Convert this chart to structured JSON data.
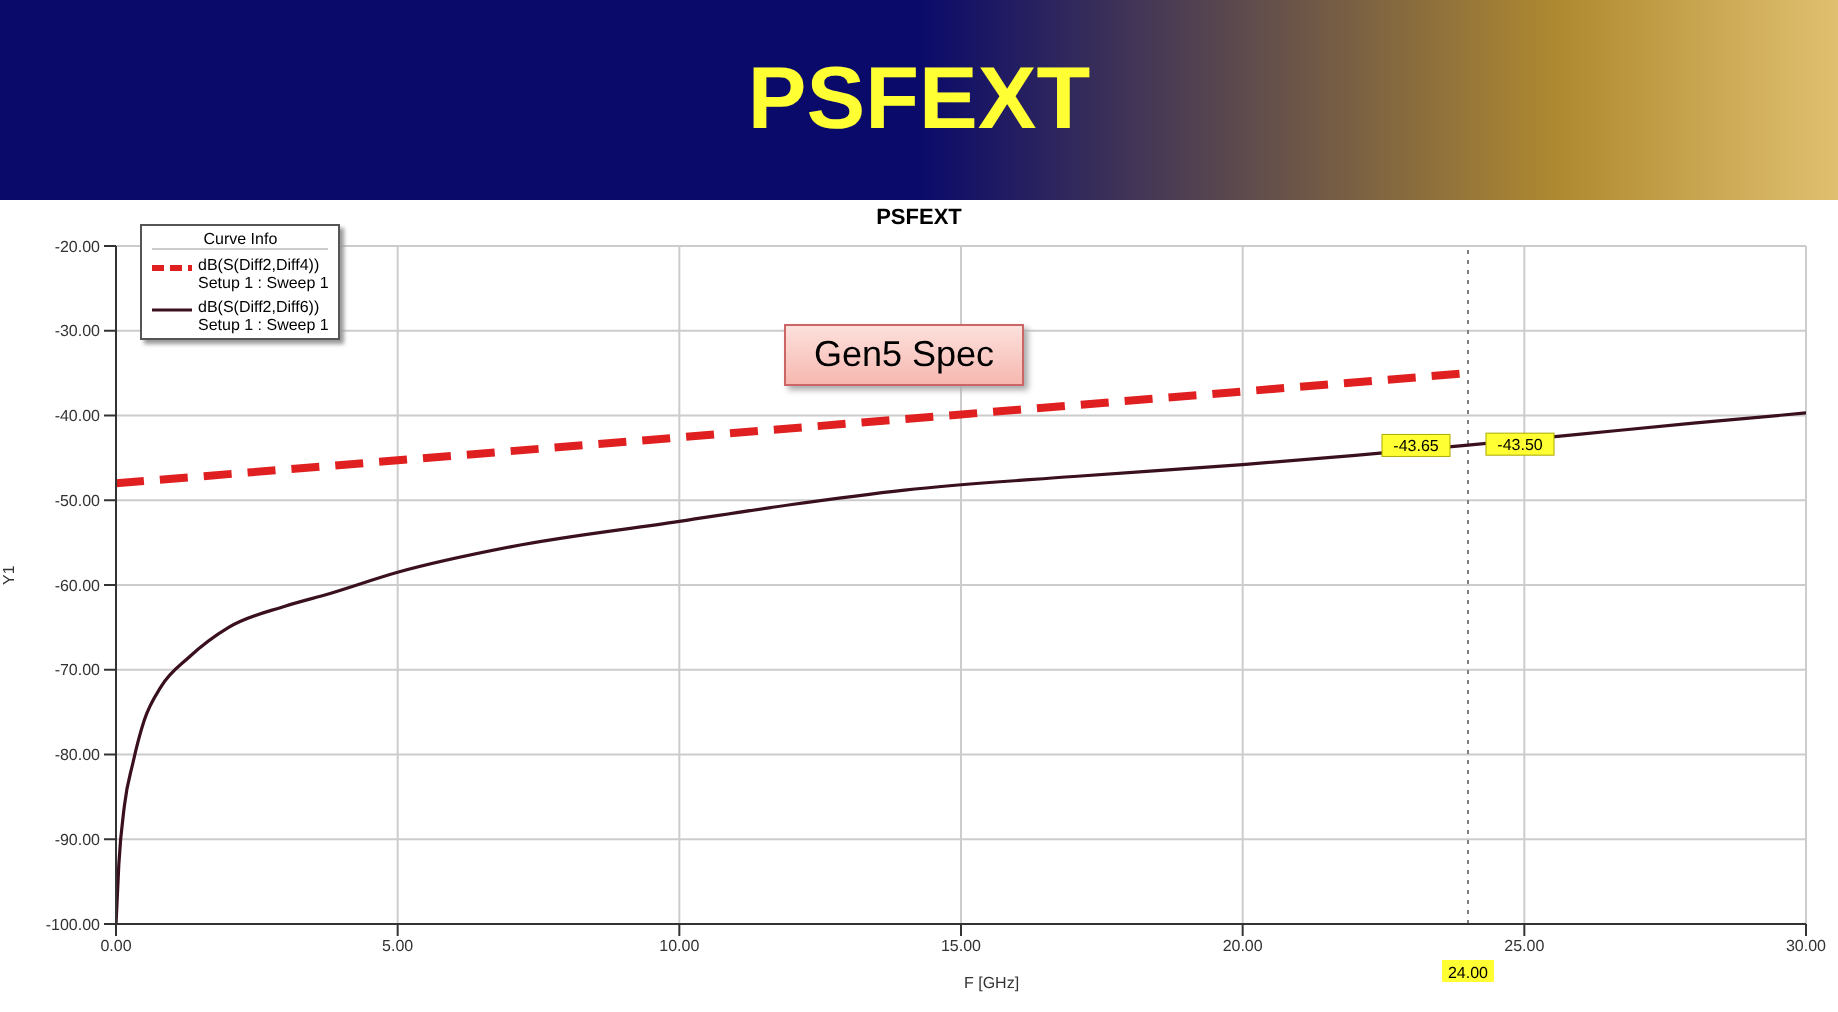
{
  "chart_data": {
    "type": "line",
    "title": "PSFEXT",
    "subtitle": "PSFEXT",
    "xlabel": "F [GHz]",
    "ylabel": "Y1",
    "legend_title": "Curve Info",
    "xlim": [
      0,
      30
    ],
    "ylim": [
      -100,
      -20
    ],
    "xticks": [
      {
        "value": 0,
        "label": "0.00"
      },
      {
        "value": 5,
        "label": "5.00"
      },
      {
        "value": 10,
        "label": "10.00"
      },
      {
        "value": 15,
        "label": "15.00"
      },
      {
        "value": 20,
        "label": "20.00"
      },
      {
        "value": 25,
        "label": "25.00"
      },
      {
        "value": 30,
        "label": "30.00"
      }
    ],
    "yticks": [
      {
        "value": -20,
        "label": "-20.00"
      },
      {
        "value": -30,
        "label": "-30.00"
      },
      {
        "value": -40,
        "label": "-40.00"
      },
      {
        "value": -50,
        "label": "-50.00"
      },
      {
        "value": -60,
        "label": "-60.00"
      },
      {
        "value": -70,
        "label": "-70.00"
      },
      {
        "value": -80,
        "label": "-80.00"
      },
      {
        "value": -90,
        "label": "-90.00"
      },
      {
        "value": -100,
        "label": "-100.00"
      }
    ],
    "grid": true,
    "legend": "top left",
    "series": [
      {
        "name": "dB(S(Diff2,Diff4))\nSetup 1 : Sweep 1",
        "color": "#e02020",
        "line_style": "dashed",
        "x": [
          0,
          24
        ],
        "values": [
          -48,
          -35
        ]
      },
      {
        "name": "dB(S(Diff2,Diff6))\nSetup 1 : Sweep 1",
        "color": "#3a1020",
        "line_style": "solid",
        "x": [
          0,
          0.05,
          0.15,
          0.3,
          0.5,
          0.8,
          1.3,
          2,
          3,
          3.8,
          5,
          7,
          10,
          12,
          14,
          17,
          20,
          22,
          24,
          26,
          28,
          30
        ],
        "values": [
          -100,
          -93,
          -86,
          -81,
          -76,
          -72,
          -68.5,
          -65,
          -62.5,
          -61,
          -58.5,
          -55.5,
          -52.5,
          -50.5,
          -48.8,
          -47.2,
          -45.8,
          -44.7,
          -43.5,
          -42.2,
          -40.9,
          -39.7
        ]
      }
    ],
    "ref_lines": [
      {
        "axis": "x",
        "value": 24,
        "label": "24.00",
        "color": "#808080",
        "line_style": "dotted"
      }
    ],
    "annotations": [
      "Gen5 Spec",
      {
        "text": "-43.65",
        "x": 24,
        "y": -43.65
      },
      {
        "text": "-43.50",
        "x": 24,
        "y": -43.5
      }
    ]
  }
}
